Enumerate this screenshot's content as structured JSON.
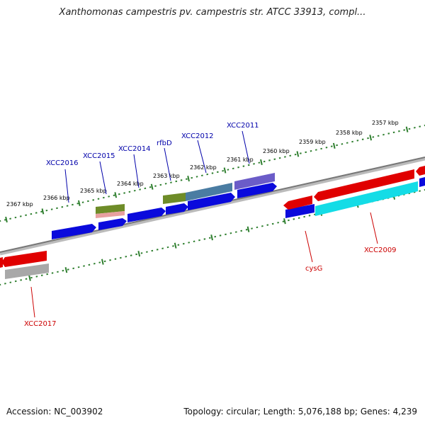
{
  "title": "Xanthomonas campestris pv. campestris str. ATCC 33913, compl...",
  "footer": {
    "accession": "Accession: NC_003902",
    "summary": "Topology: circular; Length: 5,076,188 bp; Genes: 4,239"
  },
  "colors": {
    "backbone": "#8a8a8a",
    "tick": "#2f7f2f",
    "forward_label": "#0000aa",
    "reverse_label": "#cc0000",
    "cds_blue": "#0a0adc",
    "cds_red": "#e00000",
    "cyan": "#14dce6",
    "olive": "#6e8c28",
    "steel": "#4678a0",
    "lavender": "#6b5cc8",
    "salmon": "#e08c8c",
    "grey": "#a8a8a8"
  },
  "scale": {
    "tick_labels": [
      "2357 kbp",
      "2358 kbp",
      "2359 kbp",
      "2360 kbp",
      "2361 kbp",
      "2362 kbp",
      "2363 kbp",
      "2364 kbp",
      "2365 kbp",
      "2366 kbp",
      "2367 kbp"
    ]
  },
  "labels": {
    "forward": [
      "XCC2016",
      "XCC2015",
      "XCC2014",
      "rfbD",
      "XCC2012",
      "XCC2011"
    ],
    "reverse": [
      "XCC2017",
      "cysG",
      "XCC2009"
    ]
  }
}
